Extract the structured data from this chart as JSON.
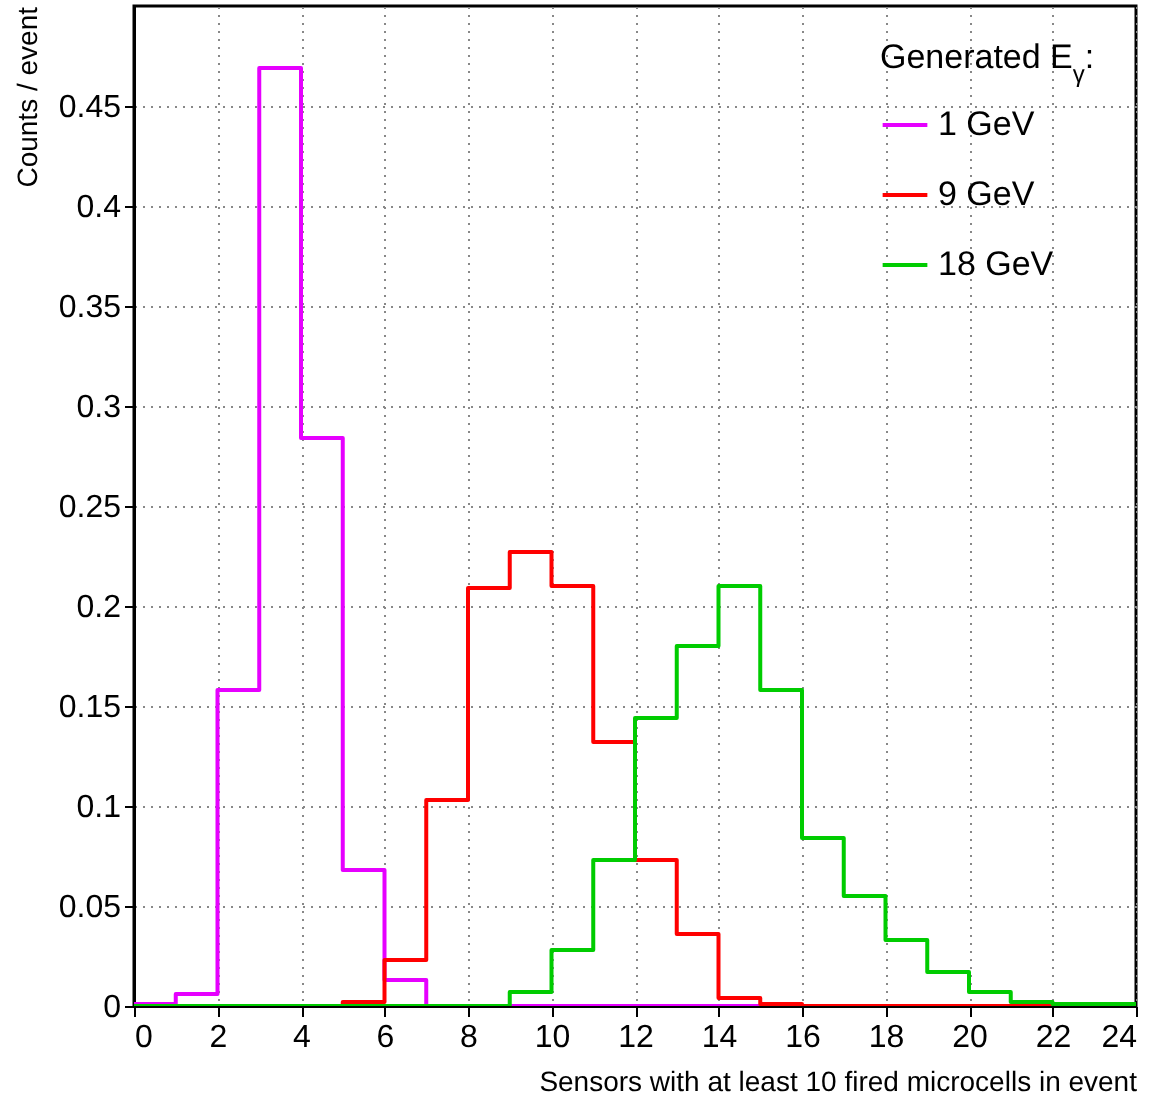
{
  "chart_data": {
    "type": "histogram",
    "xlabel": "Sensors with at least 10 fired microcells in event",
    "ylabel": "Counts / event",
    "legend_title": "Generated E$_{γ}$:",
    "legend": "top right",
    "grid": true,
    "bins": [
      0,
      1,
      2,
      3,
      4,
      5,
      6,
      7,
      8,
      9,
      10,
      11,
      12,
      13,
      14,
      15,
      16,
      17,
      18,
      19,
      20,
      21,
      22,
      23,
      24
    ],
    "xlim": [
      0,
      24
    ],
    "xticks": [
      0,
      2,
      4,
      6,
      8,
      10,
      12,
      14,
      16,
      18,
      20,
      22,
      24
    ],
    "ylim": [
      0,
      0.5
    ],
    "yticks": [
      0,
      0.05,
      0.1,
      0.15,
      0.2,
      0.25,
      0.3,
      0.35,
      0.4,
      0.45
    ],
    "series": [
      {
        "name": "1 GeV",
        "color": "#e600ff",
        "values": [
          0.001,
          0.006,
          0.158,
          0.469,
          0.284,
          0.068,
          0.013,
          0,
          0,
          0,
          0,
          0,
          0,
          0,
          0,
          0,
          0,
          0,
          0,
          0,
          0,
          0,
          0,
          0
        ]
      },
      {
        "name": "9 GeV",
        "color": "#ff0000",
        "values": [
          0,
          0,
          0,
          0,
          0,
          0.002,
          0.023,
          0.103,
          0.209,
          0.227,
          0.21,
          0.132,
          0.073,
          0.036,
          0.004,
          0.001,
          0,
          0,
          0,
          0,
          0,
          0,
          0,
          0
        ]
      },
      {
        "name": "18 GeV",
        "color": "#00cc00",
        "values": [
          0,
          0,
          0,
          0,
          0,
          0,
          0,
          0,
          0,
          0.007,
          0.028,
          0.073,
          0.144,
          0.18,
          0.21,
          0.158,
          0.084,
          0.055,
          0.033,
          0.017,
          0.007,
          0.002,
          0.001,
          0.001
        ]
      }
    ]
  }
}
